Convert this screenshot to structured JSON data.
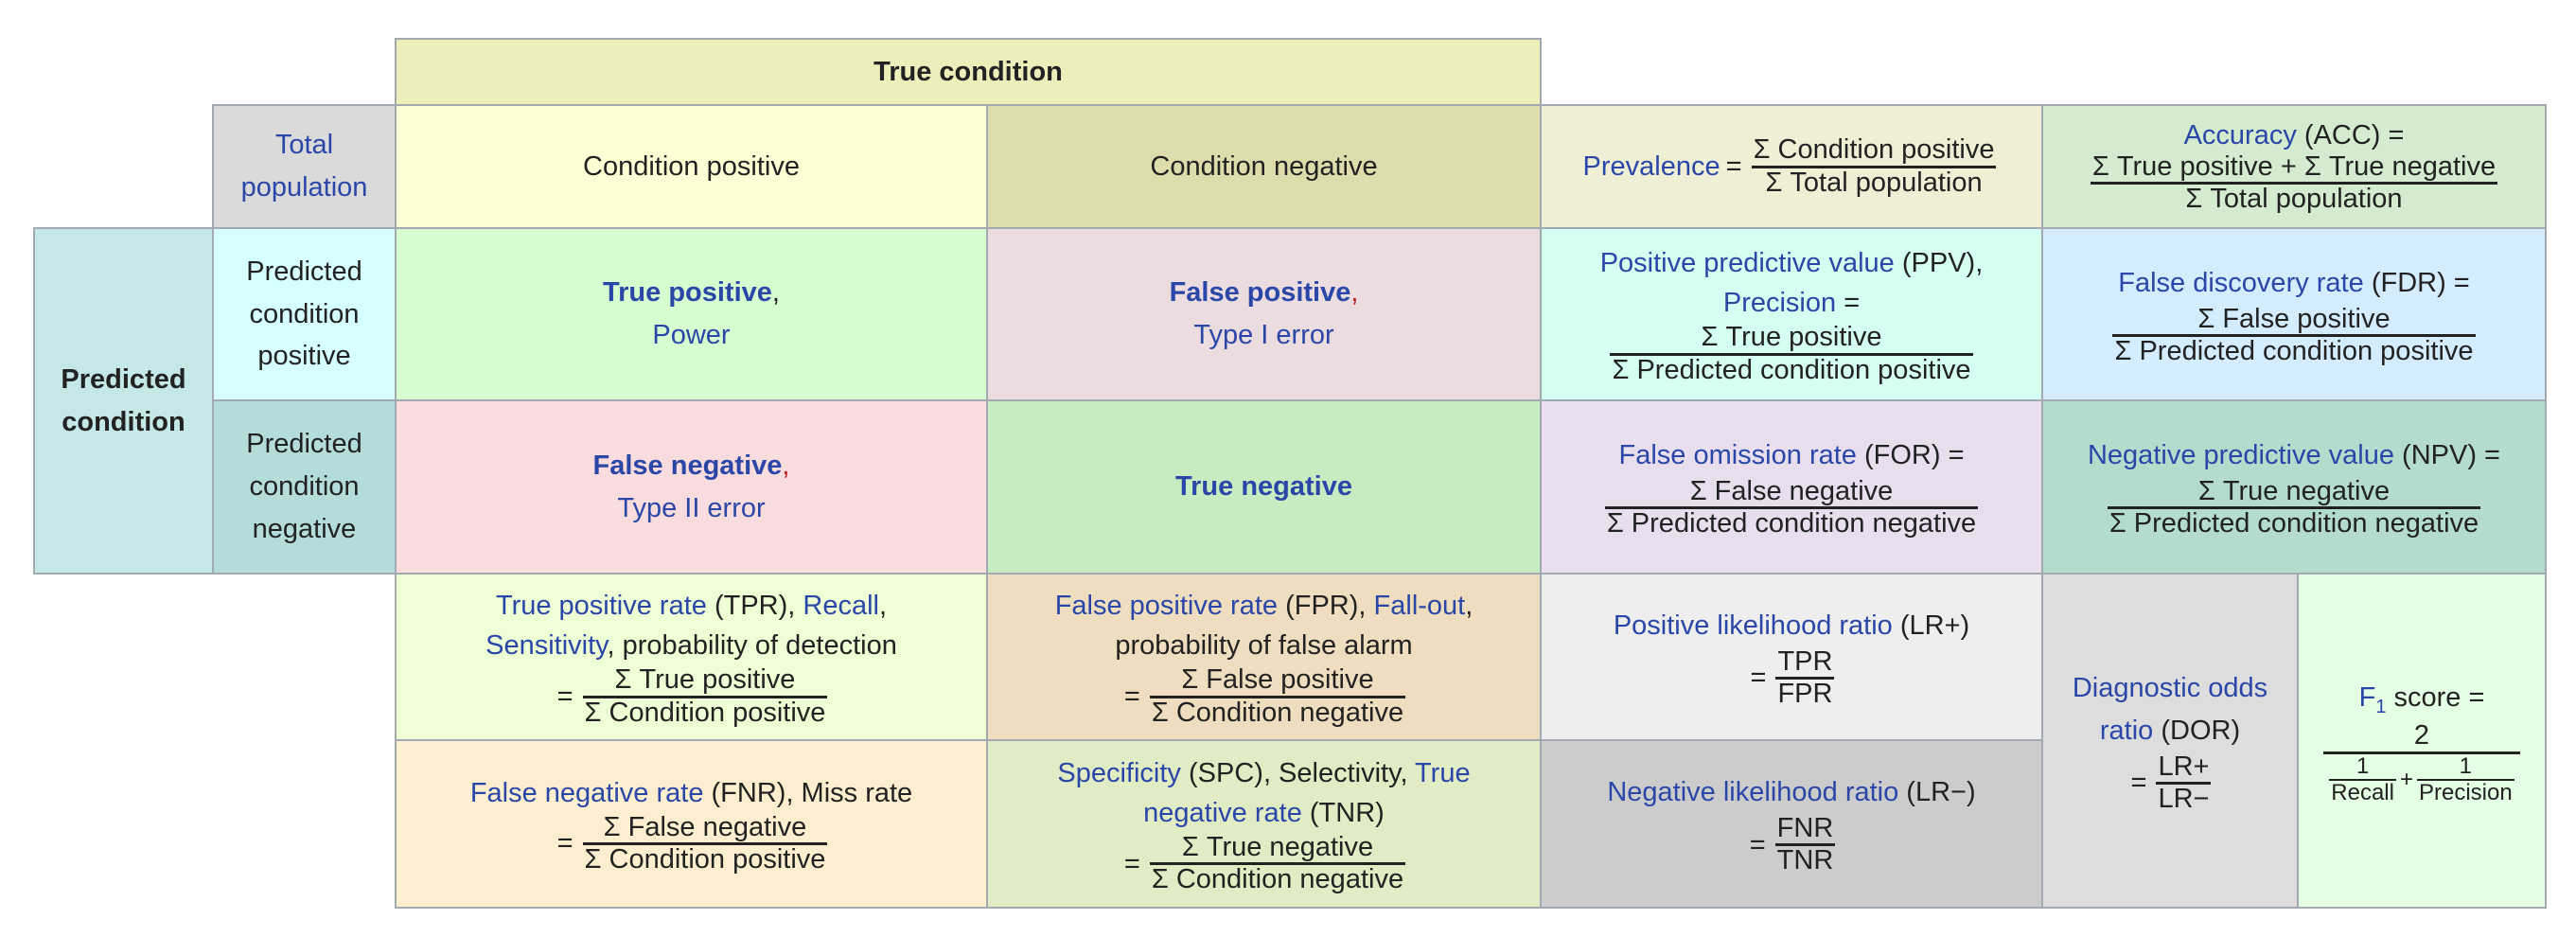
{
  "header": {
    "true_condition": "True condition",
    "total_population": "Total population",
    "condition_positive": "Condition positive",
    "condition_negative": "Condition negative",
    "predicted_condition": "Predicted condition",
    "predicted_condition_positive": "Predicted condition positive",
    "predicted_condition_negative": "Predicted condition negative"
  },
  "matrix": {
    "tp": {
      "term": "True positive",
      "comma": ",",
      "alt": "Power"
    },
    "fp": {
      "term": "False positive",
      "comma": ",",
      "alt": "Type I error"
    },
    "fn": {
      "term": "False negative",
      "comma": ",",
      "alt": "Type II error"
    },
    "tn": {
      "term": "True negative"
    }
  },
  "metrics": {
    "prevalence": {
      "name": "Prevalence",
      "eq": "=",
      "num": "Σ Condition positive",
      "den": "Σ Total population"
    },
    "accuracy": {
      "name": "Accuracy",
      "abbr": " (ACC) =",
      "num": "Σ True positive + Σ True negative",
      "den": "Σ Total population"
    },
    "ppv": {
      "name": "Positive predictive value",
      "abbr": " (PPV),",
      "alt": "Precision",
      "alt_eq": " =",
      "num": "Σ True positive",
      "den": "Σ Predicted condition positive"
    },
    "fdr": {
      "name": "False discovery rate",
      "abbr": " (FDR) =",
      "num": "Σ False positive",
      "den": "Σ Predicted condition positive"
    },
    "for": {
      "name": "False omission rate",
      "abbr": " (FOR) =",
      "num": "Σ False negative",
      "den": "Σ Predicted condition negative"
    },
    "npv": {
      "name": "Negative predictive value",
      "abbr": " (NPV) =",
      "num": "Σ True negative",
      "den": "Σ Predicted condition negative"
    },
    "tpr": {
      "name": "True positive rate",
      "abbr": " (TPR), ",
      "alt1": "Recall",
      "sep": ",",
      "alt2": "Sensitivity",
      "rest": ", probability of detection",
      "eq": "=",
      "num": "Σ True positive",
      "den": "Σ Condition positive"
    },
    "fpr": {
      "name": "False positive rate",
      "abbr": " (FPR), ",
      "alt1": "Fall-out",
      "sep": ",",
      "rest": "probability of false alarm",
      "eq": "=",
      "num": "Σ False positive",
      "den": "Σ Condition negative"
    },
    "fnr": {
      "name": "False negative rate",
      "abbr": " (FNR), Miss rate",
      "eq": "=",
      "num": "Σ False negative",
      "den": "Σ Condition positive"
    },
    "spc": {
      "name": "Specificity",
      "abbr": " (SPC), Selectivity, ",
      "alt1": "True negative rate",
      "abbr2": " (TNR)",
      "eq": "=",
      "num": "Σ True negative",
      "den": "Σ Condition negative"
    },
    "lr_pos": {
      "name": "Positive likelihood ratio",
      "abbr": " (LR+)",
      "eq": "=",
      "num": "TPR",
      "den": "FPR"
    },
    "lr_neg": {
      "name": "Negative likelihood ratio",
      "abbr": " (LR−)",
      "eq": "=",
      "num": "FNR",
      "den": "TNR"
    },
    "dor": {
      "name": "Diagnostic odds ratio",
      "abbr": " (DOR)",
      "eq": "=",
      "num": "LR+",
      "den": "LR−"
    },
    "f1": {
      "name": "F",
      "sub": "1",
      "rest": " score =",
      "num": "2",
      "d1_num": "1",
      "d1_den": "Recall",
      "plus": "+",
      "d2_num": "1",
      "d2_den": "Precision"
    }
  },
  "colors": {
    "link": "#2a47a8",
    "border": "#a2a9b1",
    "comma_red": "#b32424"
  }
}
